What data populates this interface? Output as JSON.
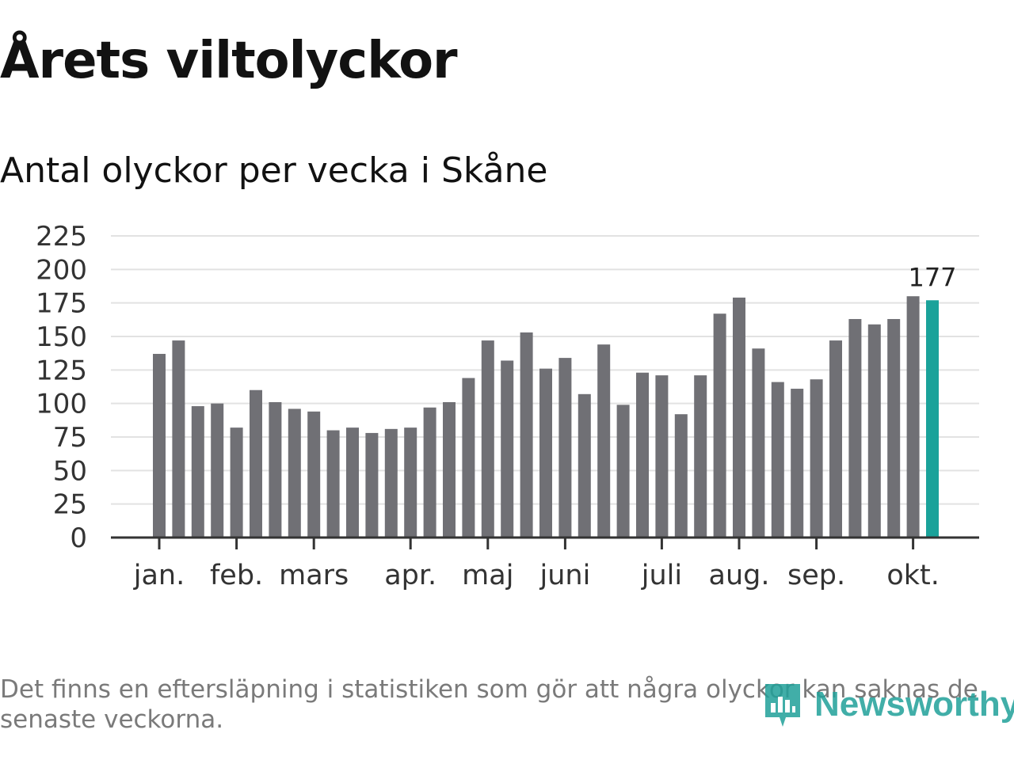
{
  "chart_data": {
    "type": "bar",
    "title": "Årets viltolyckor",
    "subtitle": "Antal olyckor per vecka i Skåne",
    "ylim": [
      0,
      225
    ],
    "yticks": [
      "0",
      "25",
      "50",
      "75",
      "100",
      "125",
      "150",
      "175",
      "200",
      "225"
    ],
    "grid": true,
    "values": [
      137,
      147,
      98,
      100,
      82,
      110,
      101,
      96,
      94,
      80,
      82,
      78,
      81,
      82,
      97,
      101,
      119,
      147,
      132,
      153,
      126,
      134,
      107,
      144,
      99,
      123,
      121,
      92,
      121,
      167,
      179,
      141,
      116,
      111,
      118,
      147,
      163,
      159,
      163,
      180,
      177
    ],
    "month_labels": [
      {
        "label": "jan.",
        "index": 0
      },
      {
        "label": "feb.",
        "index": 4
      },
      {
        "label": "mars",
        "index": 8
      },
      {
        "label": "apr.",
        "index": 13
      },
      {
        "label": "maj",
        "index": 17
      },
      {
        "label": "juni",
        "index": 21
      },
      {
        "label": "juli",
        "index": 26
      },
      {
        "label": "aug.",
        "index": 30
      },
      {
        "label": "sep.",
        "index": 34
      },
      {
        "label": "okt.",
        "index": 39
      }
    ],
    "highlight_index": 40,
    "highlight_label": "177",
    "colors": {
      "bar": "#707075",
      "highlight": "#1aa29a",
      "grid": "#e2e2e2",
      "axis": "#333333",
      "text": "#333333"
    }
  },
  "footer": {
    "note": "Det finns en eftersläpning i statistiken som gör att några olyckor kan saknas de senaste veckorna.",
    "logo_text": "Newsworthy",
    "logo_icon": "bar-chart-icon"
  }
}
